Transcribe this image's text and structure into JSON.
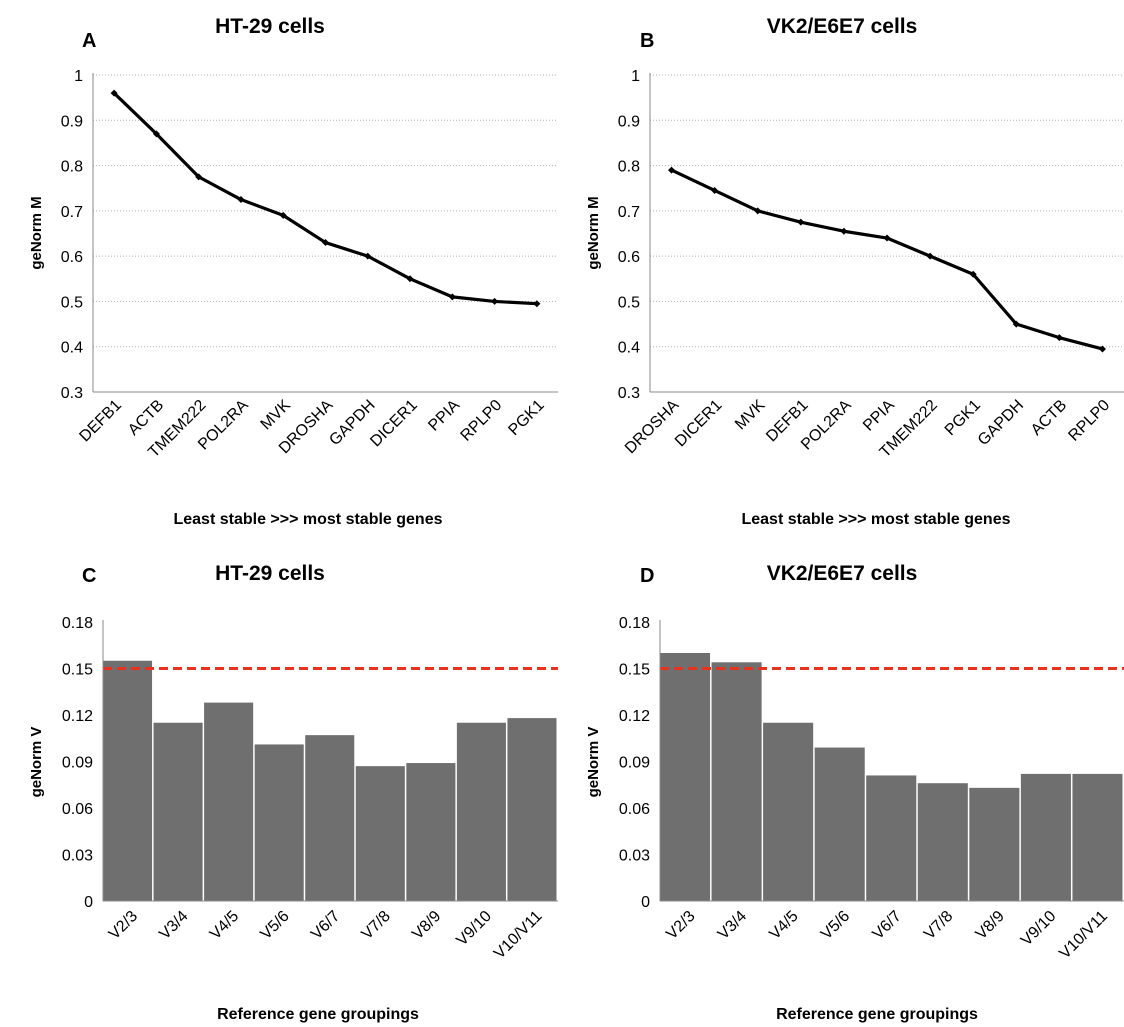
{
  "chart_data": [
    {
      "type": "line",
      "panel": "A",
      "title": "HT-29 cells",
      "xlabel": "Least stable >>> most stable genes",
      "ylabel": "geNorm M",
      "ylim": [
        0.3,
        1.0
      ],
      "yticks": [
        "0.3",
        "0.4",
        "0.5",
        "0.6",
        "0.7",
        "0.8",
        "0.9",
        "1"
      ],
      "grid": true,
      "categories": [
        "DEFB1",
        "ACTB",
        "TMEM222",
        "POL2RA",
        "MVK",
        "DROSHA",
        "GAPDH",
        "DICER1",
        "PPIA",
        "RPLP0",
        "PGK1"
      ],
      "values": [
        0.96,
        0.87,
        0.775,
        0.725,
        0.69,
        0.63,
        0.6,
        0.55,
        0.51,
        0.5,
        0.495
      ],
      "color": "#000000"
    },
    {
      "type": "line",
      "panel": "B",
      "title": "VK2/E6E7 cells",
      "xlabel": "Least stable >>> most stable genes",
      "ylabel": "geNorm M",
      "ylim": [
        0.3,
        1.0
      ],
      "yticks": [
        "0.3",
        "0.4",
        "0.5",
        "0.6",
        "0.7",
        "0.8",
        "0.9",
        "1"
      ],
      "grid": true,
      "categories": [
        "DROSHA",
        "DICER1",
        "MVK",
        "DEFB1",
        "POL2RA",
        "PPIA",
        "TMEM222",
        "PGK1",
        "GAPDH",
        "ACTB",
        "RPLP0"
      ],
      "values": [
        0.79,
        0.745,
        0.7,
        0.675,
        0.655,
        0.64,
        0.6,
        0.56,
        0.45,
        0.42,
        0.395
      ],
      "color": "#000000"
    },
    {
      "type": "bar",
      "panel": "C",
      "title": "HT-29 cells",
      "xlabel": "Reference gene groupings",
      "ylabel": "geNorm V",
      "ylim": [
        0,
        0.18
      ],
      "yticks": [
        "0",
        "0.03",
        "0.06",
        "0.09",
        "0.12",
        "0.15",
        "0.18"
      ],
      "grid": false,
      "categories": [
        "V2/3",
        "V3/4",
        "V4/5",
        "V5/6",
        "V6/7",
        "V7/8",
        "V8/9",
        "V9/10",
        "V10/V11"
      ],
      "values": [
        0.155,
        0.115,
        0.128,
        0.101,
        0.107,
        0.087,
        0.089,
        0.115,
        0.118
      ],
      "threshold": 0.15,
      "bar_color": "#6f6f6f",
      "threshold_color": "#e8321e"
    },
    {
      "type": "bar",
      "panel": "D",
      "title": "VK2/E6E7 cells",
      "xlabel": "Reference gene groupings",
      "ylabel": "geNorm V",
      "ylim": [
        0,
        0.18
      ],
      "yticks": [
        "0",
        "0.03",
        "0.06",
        "0.09",
        "0.12",
        "0.15",
        "0.18"
      ],
      "grid": false,
      "categories": [
        "V2/3",
        "V3/4",
        "V4/5",
        "V5/6",
        "V6/7",
        "V7/8",
        "V8/9",
        "V9/10",
        "V10/V11"
      ],
      "values": [
        0.16,
        0.154,
        0.115,
        0.099,
        0.081,
        0.076,
        0.073,
        0.082,
        0.082
      ],
      "threshold": 0.15,
      "bar_color": "#6f6f6f",
      "threshold_color": "#e8321e"
    }
  ]
}
